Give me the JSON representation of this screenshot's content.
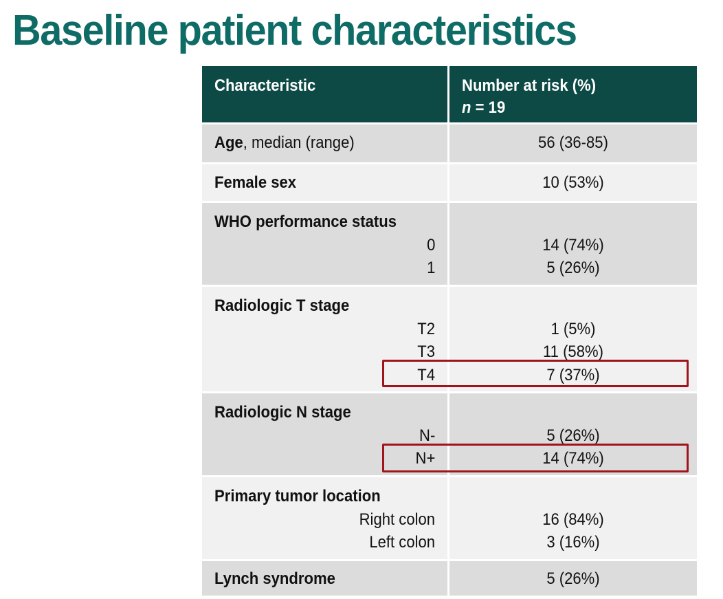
{
  "title": "Baseline patient characteristics",
  "table": {
    "header": {
      "characteristic": "Characteristic",
      "number_at_risk": "Number at risk (%)",
      "n_label": "n",
      "n_value": " = 19"
    },
    "age": {
      "label_bold": "Age",
      "label_rest": ", median (range)",
      "value": "56 (36-85)"
    },
    "female": {
      "label": "Female sex",
      "value": "10 (53%)"
    },
    "who": {
      "label": "WHO performance status",
      "rows": [
        {
          "sub": "0",
          "value": "14 (74%)"
        },
        {
          "sub": "1",
          "value": "5 (26%)"
        }
      ]
    },
    "tstage": {
      "label": "Radiologic T stage",
      "rows": [
        {
          "sub": "T2",
          "value": "1 (5%)"
        },
        {
          "sub": "T3",
          "value": "11 (58%)"
        },
        {
          "sub": "T4",
          "value": "7 (37%)"
        }
      ]
    },
    "nstage": {
      "label": "Radiologic N stage",
      "rows": [
        {
          "sub": "N-",
          "value": "5 (26%)"
        },
        {
          "sub": "N+",
          "value": "14 (74%)"
        }
      ]
    },
    "location": {
      "label": "Primary tumor location",
      "rows": [
        {
          "sub": "Right colon",
          "value": "16 (84%)"
        },
        {
          "sub": "Left colon",
          "value": "3 (16%)"
        }
      ]
    },
    "lynch": {
      "label": "Lynch syndrome",
      "value": "5 (26%)"
    }
  },
  "colors": {
    "title": "#0e6b66",
    "header_bg": "#0e4a45",
    "row_shade": "#dcdcdc",
    "row_light": "#f1f1f1",
    "highlight": "#a0141e"
  }
}
